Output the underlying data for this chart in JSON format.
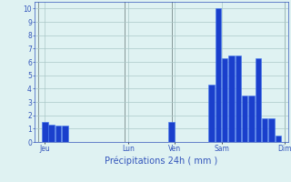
{
  "bar_values": [
    0,
    1.5,
    1.3,
    1.2,
    1.2,
    0,
    0,
    0,
    0,
    0,
    0,
    0,
    0,
    0,
    0,
    0,
    0,
    0,
    0,
    0,
    1.5,
    0,
    0,
    0,
    0,
    0,
    4.3,
    10.0,
    6.3,
    6.5,
    6.5,
    3.5,
    3.5,
    6.3,
    1.8,
    1.8,
    0.5,
    0
  ],
  "n_bars": 38,
  "ylim": [
    0,
    10.5
  ],
  "yticks": [
    0,
    1,
    2,
    3,
    4,
    5,
    6,
    7,
    8,
    9,
    10
  ],
  "day_labels": [
    "Jeu",
    "Lun",
    "Ven",
    "Sam",
    "Dim"
  ],
  "day_positions": [
    1.0,
    13.5,
    20.5,
    27.5,
    37.0
  ],
  "bar_color": "#1a3fcc",
  "bar_edge_color": "#4477ee",
  "bg_color": "#dff2f2",
  "grid_color": "#aac8c8",
  "xlabel": "Précipitations 24h ( mm )",
  "xlabel_color": "#3355bb",
  "tick_color": "#3355bb",
  "axis_color": "#3355bb",
  "vline_positions": [
    0.0,
    13.0,
    20.0,
    37.0
  ],
  "vline_color": "#778888"
}
